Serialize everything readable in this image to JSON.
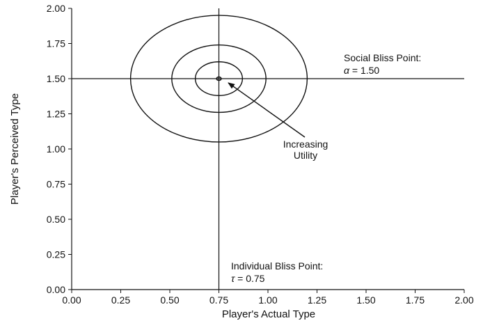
{
  "chart_data": {
    "type": "contour",
    "xlabel": "Player's Actual Type",
    "ylabel": "Player's Perceived Type",
    "xlim": [
      0,
      2
    ],
    "ylim": [
      0,
      2
    ],
    "x_ticks": [
      "0.00",
      "0.25",
      "0.50",
      "0.75",
      "1.00",
      "1.25",
      "1.50",
      "1.75",
      "2.00"
    ],
    "y_ticks": [
      "0.00",
      "0.25",
      "0.50",
      "0.75",
      "1.00",
      "1.25",
      "1.50",
      "1.75",
      "2.00"
    ],
    "grid": false,
    "center": {
      "x": 0.75,
      "y": 1.5
    },
    "circle_radii": [
      0.45,
      0.24,
      0.12,
      0.012
    ],
    "reference_lines": {
      "vertical_x": 0.75,
      "horizontal_y": 1.5
    },
    "annotations": {
      "social_line1": "Social Bliss Point:",
      "social_line2_symbol": "α",
      "social_line2_value": "= 1.50",
      "individual_line1": "Individual Bliss Point:",
      "individual_line2_symbol": "τ",
      "individual_line2_value": "= 0.75",
      "arrow_line1": "Increasing",
      "arrow_line2": "Utility"
    }
  }
}
